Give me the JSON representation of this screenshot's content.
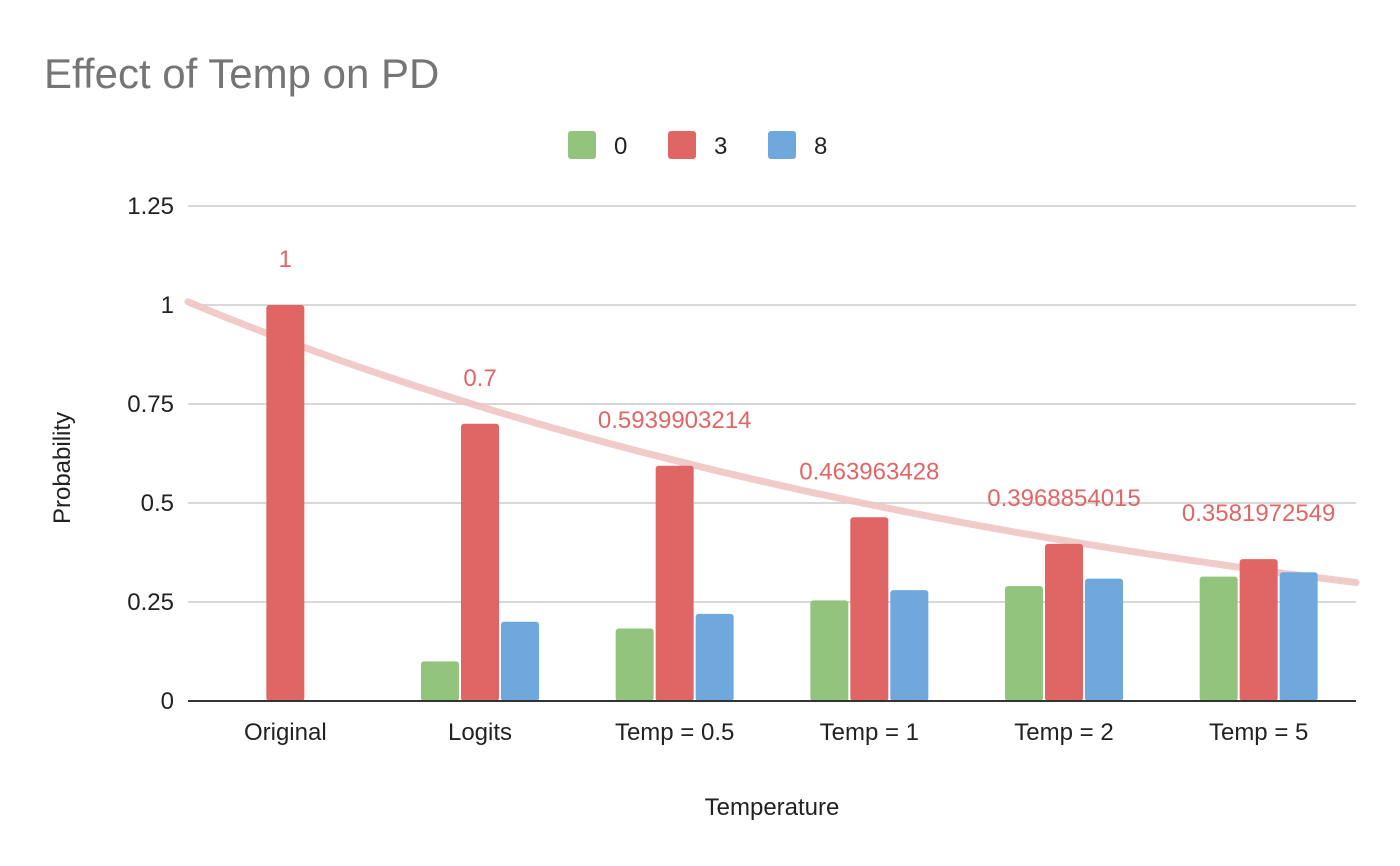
{
  "chart_data": {
    "type": "bar",
    "title": "Effect of Temp on PD",
    "xlabel": "Temperature",
    "ylabel": "Probability",
    "categories": [
      "Original",
      "Logits",
      "Temp = 0.5",
      "Temp = 1",
      "Temp = 2",
      "Temp = 5"
    ],
    "series": [
      {
        "name": "0",
        "color": "#93c47d",
        "values": [
          0,
          0.1,
          0.183,
          0.254,
          0.29,
          0.314
        ]
      },
      {
        "name": "3",
        "color": "#e06666",
        "values": [
          1,
          0.7,
          0.5939903214,
          0.463963428,
          0.3968854015,
          0.3581972549
        ]
      },
      {
        "name": "8",
        "color": "#6fa8dc",
        "values": [
          0,
          0.2,
          0.22,
          0.28,
          0.309,
          0.325
        ]
      }
    ],
    "data_labels": {
      "series": "3",
      "color": "#e06666",
      "labels": [
        "1",
        "0.7",
        "0.5939903214",
        "0.463963428",
        "0.3968854015",
        "0.3581972549"
      ]
    },
    "trendline": {
      "series": "3",
      "type": "exponential",
      "color": "#f0c4c4"
    },
    "ylim": [
      0,
      1.25
    ],
    "yticks": [
      "0",
      "0.25",
      "0.5",
      "0.75",
      "1",
      "1.25"
    ],
    "ytick_values": [
      0,
      0.25,
      0.5,
      0.75,
      1,
      1.25
    ],
    "legend_position": "top",
    "grid": true
  }
}
